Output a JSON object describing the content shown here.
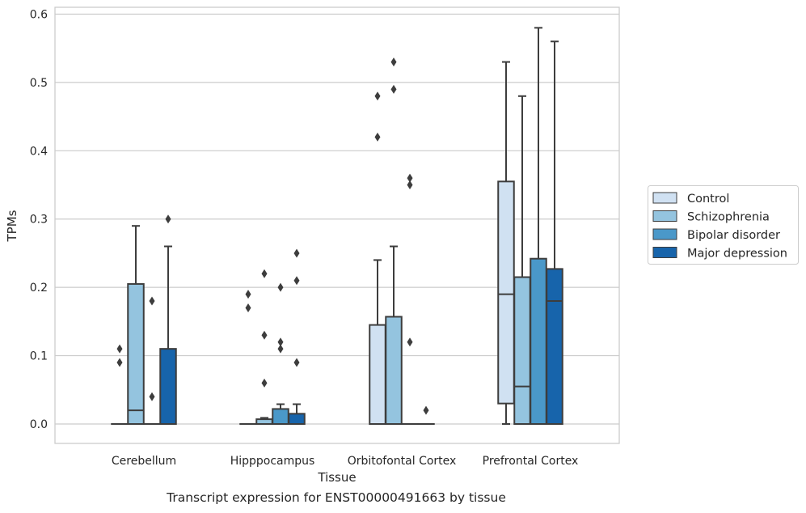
{
  "caption": "Transcript expression for ENST00000491663 by tissue",
  "colors": {
    "Control": "#d0e1f2",
    "Schizophrenia": "#94c4df",
    "Bipolar disorder": "#4a98c9",
    "Major depression": "#1764ab",
    "line": "#3d3d3d",
    "grid": "#cccccc",
    "frame": "#cccccc"
  },
  "chart_data": {
    "type": "box",
    "title": "",
    "xlabel": "Tissue",
    "ylabel": "TPMs",
    "ylim": [
      -0.028,
      0.612
    ],
    "yticks": [
      0.0,
      0.1,
      0.2,
      0.3,
      0.4,
      0.5,
      0.6
    ],
    "ytick_labels": [
      "0.0",
      "0.1",
      "0.2",
      "0.3",
      "0.4",
      "0.5",
      "0.6"
    ],
    "grid": "horizontal",
    "legend_position": "right",
    "categories": [
      "Cerebellum",
      "Hipppocampus",
      "Orbitofontal Cortex",
      "Prefrontal Cortex"
    ],
    "series": [
      {
        "name": "Control",
        "boxes": [
          {
            "q1": 0,
            "median": 0,
            "q3": 0,
            "low": 0,
            "high": 0,
            "outliers": [
              0.09,
              0.11
            ]
          },
          {
            "q1": 0,
            "median": 0,
            "q3": 0,
            "low": 0,
            "high": 0,
            "outliers": [
              0.17,
              0.19
            ]
          },
          {
            "q1": 0,
            "median": 0,
            "q3": 0.145,
            "low": 0,
            "high": 0.24,
            "outliers": [
              0.42,
              0.48
            ]
          },
          {
            "q1": 0.03,
            "median": 0.19,
            "q3": 0.355,
            "low": 0,
            "high": 0.53,
            "outliers": []
          }
        ]
      },
      {
        "name": "Schizophrenia",
        "boxes": [
          {
            "q1": 0,
            "median": 0.02,
            "q3": 0.205,
            "low": 0,
            "high": 0.29,
            "outliers": []
          },
          {
            "q1": 0,
            "median": 0,
            "q3": 0.007,
            "low": 0,
            "high": 0.009,
            "outliers": [
              0.06,
              0.13,
              0.22
            ]
          },
          {
            "q1": 0,
            "median": 0,
            "q3": 0.157,
            "low": 0,
            "high": 0.26,
            "outliers": [
              0.49,
              0.53
            ]
          },
          {
            "q1": 0,
            "median": 0.055,
            "q3": 0.215,
            "low": 0,
            "high": 0.48,
            "outliers": []
          }
        ]
      },
      {
        "name": "Bipolar disorder",
        "boxes": [
          {
            "q1": 0,
            "median": 0,
            "q3": 0,
            "low": 0,
            "high": 0,
            "outliers": [
              0.04,
              0.18
            ]
          },
          {
            "q1": 0,
            "median": 0,
            "q3": 0.022,
            "low": 0,
            "high": 0.029,
            "outliers": [
              0.11,
              0.12,
              0.2
            ]
          },
          {
            "q1": 0,
            "median": 0,
            "q3": 0,
            "low": 0,
            "high": 0,
            "outliers": [
              0.12,
              0.35,
              0.36
            ]
          },
          {
            "q1": 0,
            "median": 0,
            "q3": 0.242,
            "low": 0,
            "high": 0.58,
            "outliers": []
          }
        ]
      },
      {
        "name": "Major depression",
        "boxes": [
          {
            "q1": 0,
            "median": 0,
            "q3": 0.11,
            "low": 0,
            "high": 0.26,
            "outliers": [
              0.3
            ]
          },
          {
            "q1": 0,
            "median": 0,
            "q3": 0.015,
            "low": 0,
            "high": 0.029,
            "outliers": [
              0.09,
              0.21,
              0.25
            ]
          },
          {
            "q1": 0,
            "median": 0,
            "q3": 0,
            "low": 0,
            "high": 0,
            "outliers": [
              0.02
            ]
          },
          {
            "q1": 0,
            "median": 0.18,
            "q3": 0.227,
            "low": 0,
            "high": 0.56,
            "outliers": []
          }
        ]
      }
    ]
  }
}
